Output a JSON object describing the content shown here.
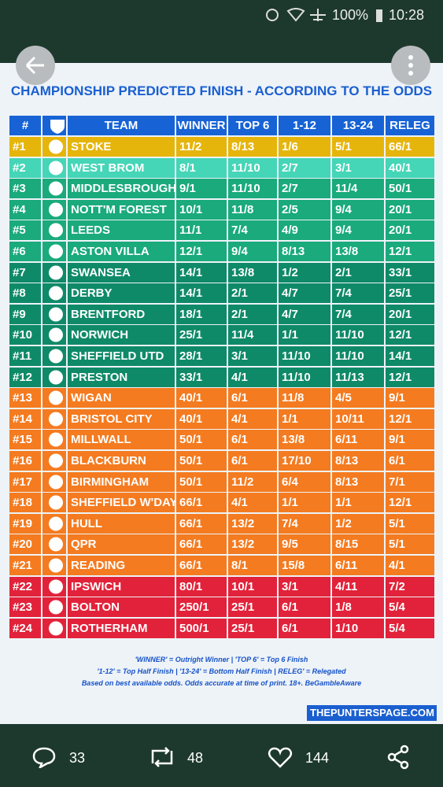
{
  "status_bar": {
    "battery": "100%",
    "time": "10:28"
  },
  "title": "CHAMPIONSHIP PREDICTED FINISH - ACCORDING TO THE ODDS",
  "table": {
    "headers": [
      "#",
      "TEAM",
      "WINNER",
      "TOP 6",
      "1-12",
      "13-24",
      "RELEG"
    ],
    "header_color": "#1763d6",
    "rows": [
      {
        "rank": "#1",
        "team": "STOKE",
        "odds": [
          "11/2",
          "8/13",
          "1/6",
          "5/1",
          "66/1"
        ],
        "color": "#e6b50c"
      },
      {
        "rank": "#2",
        "team": "WEST BROM",
        "odds": [
          "8/1",
          "11/10",
          "2/7",
          "3/1",
          "40/1"
        ],
        "color": "#45d5b7"
      },
      {
        "rank": "#3",
        "team": "MIDDLESBROUGH",
        "odds": [
          "9/1",
          "11/10",
          "2/7",
          "11/4",
          "50/1"
        ],
        "color": "#1aaa7b"
      },
      {
        "rank": "#4",
        "team": "NOTT'M FOREST",
        "odds": [
          "10/1",
          "11/8",
          "2/5",
          "9/4",
          "20/1"
        ],
        "color": "#1aaa7b"
      },
      {
        "rank": "#5",
        "team": "LEEDS",
        "odds": [
          "11/1",
          "7/4",
          "4/9",
          "9/4",
          "20/1"
        ],
        "color": "#1aaa7b"
      },
      {
        "rank": "#6",
        "team": "ASTON VILLA",
        "odds": [
          "12/1",
          "9/4",
          "8/13",
          "13/8",
          "12/1"
        ],
        "color": "#1aaa7b"
      },
      {
        "rank": "#7",
        "team": "SWANSEA",
        "odds": [
          "14/1",
          "13/8",
          "1/2",
          "2/1",
          "33/1"
        ],
        "color": "#0f8a68"
      },
      {
        "rank": "#8",
        "team": "DERBY",
        "odds": [
          "14/1",
          "2/1",
          "4/7",
          "7/4",
          "25/1"
        ],
        "color": "#0f8a68"
      },
      {
        "rank": "#9",
        "team": "BRENTFORD",
        "odds": [
          "18/1",
          "2/1",
          "4/7",
          "7/4",
          "20/1"
        ],
        "color": "#0f8a68"
      },
      {
        "rank": "#10",
        "team": "NORWICH",
        "odds": [
          "25/1",
          "11/4",
          "1/1",
          "11/10",
          "12/1"
        ],
        "color": "#0f8a68"
      },
      {
        "rank": "#11",
        "team": "SHEFFIELD UTD",
        "odds": [
          "28/1",
          "3/1",
          "11/10",
          "11/10",
          "14/1"
        ],
        "color": "#0f8a68"
      },
      {
        "rank": "#12",
        "team": "PRESTON",
        "odds": [
          "33/1",
          "4/1",
          "11/10",
          "11/13",
          "12/1"
        ],
        "color": "#0f8a68"
      },
      {
        "rank": "#13",
        "team": "WIGAN",
        "odds": [
          "40/1",
          "6/1",
          "11/8",
          "4/5",
          "9/1"
        ],
        "color": "#f47b20"
      },
      {
        "rank": "#14",
        "team": "BRISTOL CITY",
        "odds": [
          "40/1",
          "4/1",
          "1/1",
          "10/11",
          "12/1"
        ],
        "color": "#f47b20"
      },
      {
        "rank": "#15",
        "team": "MILLWALL",
        "odds": [
          "50/1",
          "6/1",
          "13/8",
          "6/11",
          "9/1"
        ],
        "color": "#f47b20"
      },
      {
        "rank": "#16",
        "team": "BLACKBURN",
        "odds": [
          "50/1",
          "6/1",
          "17/10",
          "8/13",
          "6/1"
        ],
        "color": "#f47b20"
      },
      {
        "rank": "#17",
        "team": "BIRMINGHAM",
        "odds": [
          "50/1",
          "11/2",
          "6/4",
          "8/13",
          "7/1"
        ],
        "color": "#f47b20"
      },
      {
        "rank": "#18",
        "team": "SHEFFIELD W'DAY",
        "odds": [
          "66/1",
          "4/1",
          "1/1",
          "1/1",
          "12/1"
        ],
        "color": "#f47b20"
      },
      {
        "rank": "#19",
        "team": "HULL",
        "odds": [
          "66/1",
          "13/2",
          "7/4",
          "1/2",
          "5/1"
        ],
        "color": "#f47b20"
      },
      {
        "rank": "#20",
        "team": "QPR",
        "odds": [
          "66/1",
          "13/2",
          "9/5",
          "8/15",
          "5/1"
        ],
        "color": "#f47b20"
      },
      {
        "rank": "#21",
        "team": "READING",
        "odds": [
          "66/1",
          "8/1",
          "15/8",
          "6/11",
          "4/1"
        ],
        "color": "#f47b20"
      },
      {
        "rank": "#22",
        "team": "IPSWICH",
        "odds": [
          "80/1",
          "10/1",
          "3/1",
          "4/11",
          "7/2"
        ],
        "color": "#e2223a"
      },
      {
        "rank": "#23",
        "team": "BOLTON",
        "odds": [
          "250/1",
          "25/1",
          "6/1",
          "1/8",
          "5/4"
        ],
        "color": "#e2223a"
      },
      {
        "rank": "#24",
        "team": "ROTHERHAM",
        "odds": [
          "500/1",
          "25/1",
          "6/1",
          "1/10",
          "5/4"
        ],
        "color": "#e2223a"
      }
    ]
  },
  "footnotes": [
    "'WINNER' = Outright Winner | 'TOP 6' = Top 6 Finish",
    "'1-12' = Top Half Finish | '13-24' = Bottom Half Finish | RELEG' = Relegated",
    "Based on best available odds. Odds accurate at time of print. 18+. BeGambleAware"
  ],
  "brand": "THEPUNTERSPAGE.COM",
  "actions": {
    "replies": 33,
    "retweets": 48,
    "likes": 144
  }
}
